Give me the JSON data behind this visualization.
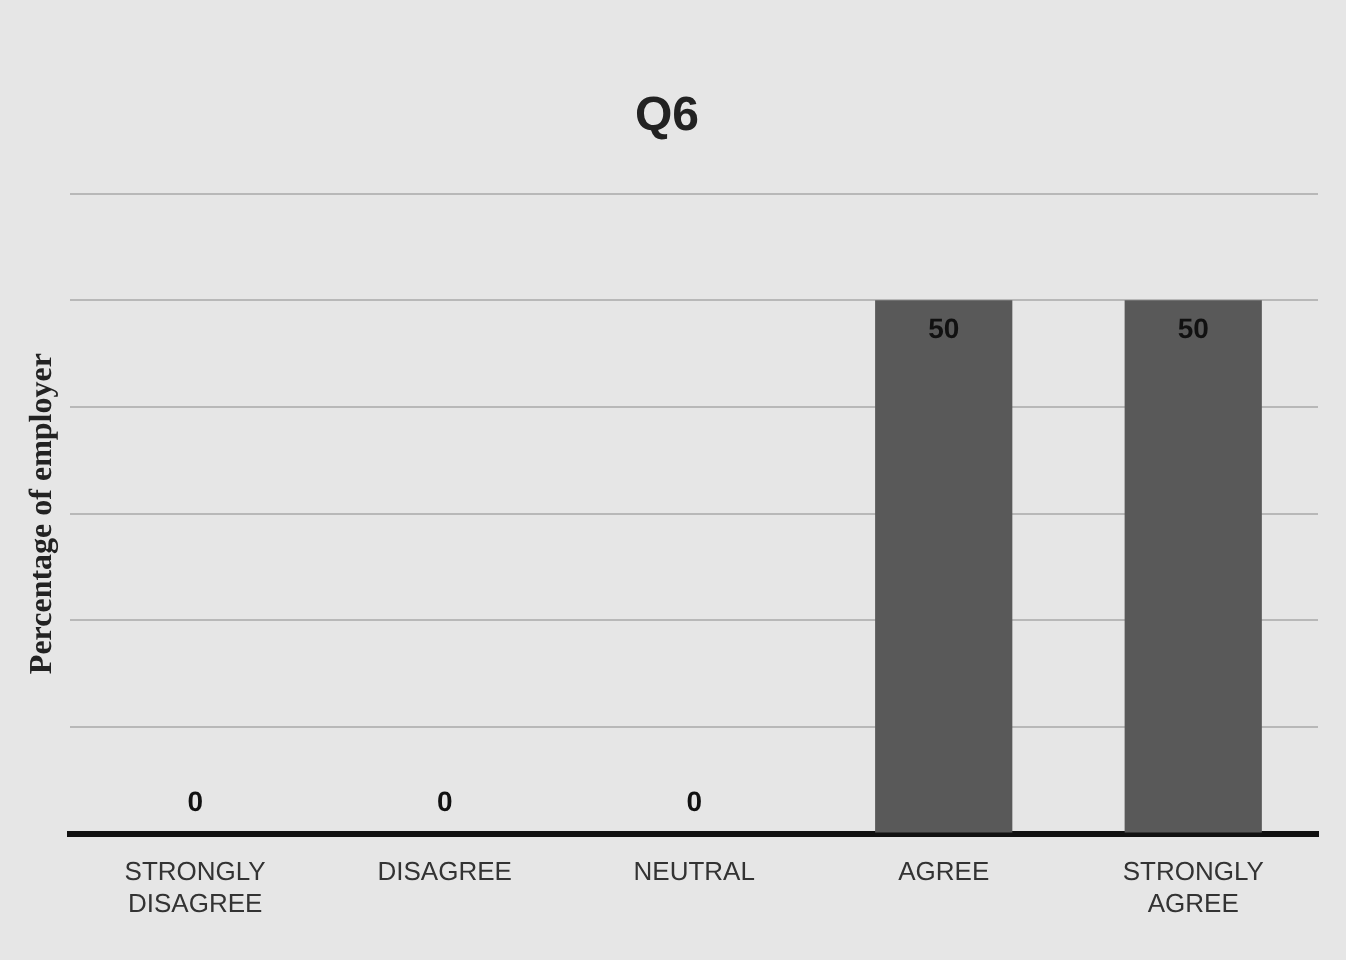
{
  "chart_data": {
    "type": "bar",
    "title": "Q6",
    "ylabel": "Percentage of employer",
    "categories": [
      "STRONGLY DISAGREE",
      "DISAGREE",
      "NEUTRAL",
      "AGREE",
      "STRONGLY AGREE"
    ],
    "values": [
      0,
      0,
      0,
      50,
      50
    ],
    "color": "#595959",
    "ylim": [
      0,
      60
    ],
    "yticks": [
      {
        "value": 0,
        "label": null
      },
      {
        "value": 10,
        "label": null
      },
      {
        "value": 20,
        "label": null
      },
      {
        "value": 30,
        "label": null
      },
      {
        "value": 40,
        "label": null
      },
      {
        "value": 50,
        "label": null
      },
      {
        "value": 60,
        "label": null
      }
    ],
    "grid": "y",
    "legend": false,
    "tick_labels": "x",
    "data_labels": true
  }
}
